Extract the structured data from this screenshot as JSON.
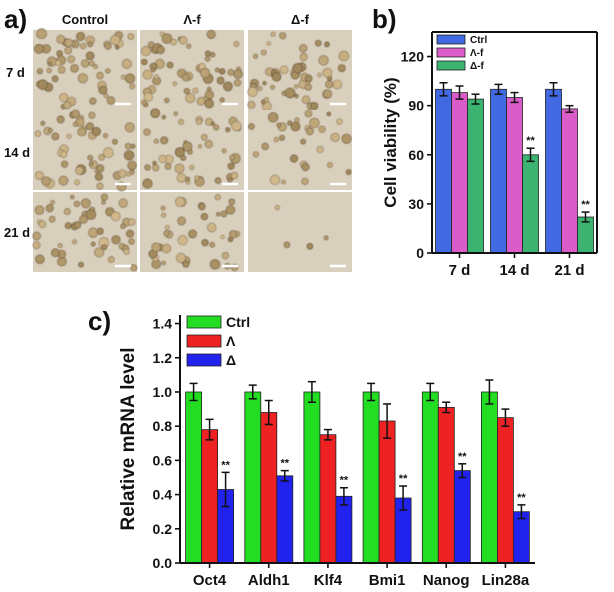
{
  "panel_labels": {
    "a": "a)",
    "b": "b)",
    "c": "c)"
  },
  "micrographs": {
    "columns": [
      "Control",
      "Λ-f",
      "Δ-f"
    ],
    "rows": [
      "7 d",
      "14 d",
      "21 d"
    ],
    "cell_density": [
      [
        1.0,
        1.0,
        0.9
      ],
      [
        0.95,
        0.85,
        0.55
      ],
      [
        0.9,
        0.75,
        0.08
      ]
    ]
  },
  "chart_data": [
    {
      "type": "bar",
      "title": "",
      "xlabel": "",
      "ylabel": "Cell viability (%)",
      "ylim": [
        0,
        135
      ],
      "yticks": [
        "0",
        "30",
        "60",
        "90",
        "120"
      ],
      "categories": [
        "7 d",
        "14 d",
        "21 d"
      ],
      "series": [
        {
          "name": "Ctrl",
          "color": "#4169E1",
          "values": [
            100,
            100,
            100
          ],
          "errors": [
            4,
            3,
            4
          ]
        },
        {
          "name": "Λ-f",
          "color": "#DA5CC8",
          "values": [
            98,
            95,
            88
          ],
          "errors": [
            4,
            3,
            2
          ]
        },
        {
          "name": "Δ-f",
          "color": "#3CB371",
          "values": [
            94,
            60,
            22
          ],
          "errors": [
            3,
            4,
            3
          ]
        }
      ],
      "annotations": [
        {
          "category": "14 d",
          "series": "Δ-f",
          "text": "**"
        },
        {
          "category": "21 d",
          "series": "Δ-f",
          "text": "**"
        }
      ],
      "legend": "top-left"
    },
    {
      "type": "bar",
      "title": "",
      "xlabel": "",
      "ylabel": "Relative mRNA level",
      "ylim": [
        0,
        1.45
      ],
      "yticks": [
        "0.0",
        "0.2",
        "0.4",
        "0.6",
        "0.8",
        "1.0",
        "1.2",
        "1.4"
      ],
      "categories": [
        "Oct4",
        "Aldh1",
        "Klf4",
        "Bmi1",
        "Nanog",
        "Lin28a"
      ],
      "series": [
        {
          "name": "Ctrl",
          "color": "#22DD22",
          "values": [
            1.0,
            1.0,
            1.0,
            1.0,
            1.0,
            1.0
          ],
          "errors": [
            0.05,
            0.04,
            0.06,
            0.05,
            0.05,
            0.07
          ]
        },
        {
          "name": "Λ",
          "color": "#EE2222",
          "values": [
            0.78,
            0.88,
            0.75,
            0.83,
            0.91,
            0.85
          ],
          "errors": [
            0.06,
            0.07,
            0.03,
            0.1,
            0.03,
            0.05
          ]
        },
        {
          "name": "Δ",
          "color": "#2222EE",
          "values": [
            0.43,
            0.51,
            0.39,
            0.38,
            0.54,
            0.3
          ],
          "errors": [
            0.1,
            0.03,
            0.05,
            0.07,
            0.04,
            0.04
          ]
        }
      ],
      "annotations": [
        {
          "category": "Oct4",
          "series": "Δ",
          "text": "**"
        },
        {
          "category": "Aldh1",
          "series": "Δ",
          "text": "**"
        },
        {
          "category": "Klf4",
          "series": "Δ",
          "text": "**"
        },
        {
          "category": "Bmi1",
          "series": "Δ",
          "text": "**"
        },
        {
          "category": "Nanog",
          "series": "Δ",
          "text": "**"
        },
        {
          "category": "Lin28a",
          "series": "Δ",
          "text": "**"
        }
      ],
      "legend": "top-left"
    }
  ]
}
